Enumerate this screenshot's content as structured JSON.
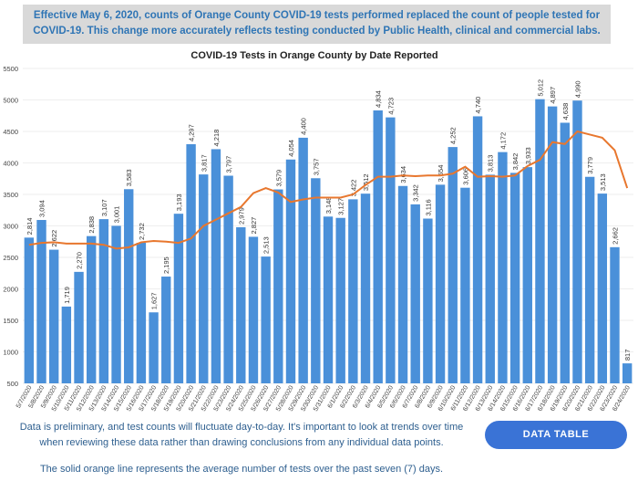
{
  "banner": "Effective May 6, 2020, counts of Orange County COVID-19 tests performed replaced the count of people tested for COVID-19. This change more accurately reflects testing conducted by Public Health, clinical and commercial labs.",
  "chart_data": {
    "type": "bar",
    "title": "COVID-19 Tests in Orange County by Date Reported",
    "categories": [
      "5/7/2020",
      "5/8/2020",
      "5/9/2020",
      "5/10/2020",
      "5/11/2020",
      "5/12/2020",
      "5/13/2020",
      "5/14/2020",
      "5/15/2020",
      "5/16/2020",
      "5/17/2020",
      "5/18/2020",
      "5/19/2020",
      "5/20/2020",
      "5/21/2020",
      "5/22/2020",
      "5/23/2020",
      "5/24/2020",
      "5/25/2020",
      "5/26/2020",
      "5/27/2020",
      "5/28/2020",
      "5/29/2020",
      "5/30/2020",
      "5/31/2020",
      "6/1/2020",
      "6/2/2020",
      "6/3/2020",
      "6/4/2020",
      "6/5/2020",
      "6/6/2020",
      "6/7/2020",
      "6/8/2020",
      "6/9/2020",
      "6/10/2020",
      "6/11/2020",
      "6/12/2020",
      "6/13/2020",
      "6/14/2020",
      "6/15/2020",
      "6/16/2020",
      "6/17/2020",
      "6/18/2020",
      "6/19/2020",
      "6/20/2020",
      "6/21/2020",
      "6/22/2020",
      "6/23/2020",
      "6/24/2020"
    ],
    "series": [
      {
        "type": "bar",
        "color": "#4a90d9",
        "values": [
          2814,
          3094,
          2622,
          1719,
          2270,
          2838,
          3107,
          3001,
          3583,
          2732,
          1627,
          2195,
          3193,
          4297,
          3817,
          4218,
          3797,
          2979,
          2827,
          2513,
          3579,
          4054,
          4400,
          3757,
          3148,
          3127,
          3422,
          3512,
          4834,
          4723,
          3634,
          3342,
          3116,
          3654,
          4252,
          3606,
          4740,
          3813,
          4172,
          3842,
          3933,
          5012,
          4897,
          4638,
          4990,
          3779,
          3513,
          2662,
          817
        ],
        "value_labels": [
          "2,814",
          "3,094",
          "2,622",
          "1,719",
          "2,270",
          "2,838",
          "3,107",
          "3,001",
          "3,583",
          "2,732",
          "1,627",
          "2,195",
          "3,193",
          "4,297",
          "3,817",
          "4,218",
          "3,797",
          "2,979",
          "2,827",
          "2,513",
          "3,579",
          "4,054",
          "4,400",
          "3,757",
          "3,148",
          "3,127",
          "3,422",
          "3,512",
          "4,834",
          "4,723",
          "3,634",
          "3,342",
          "3,116",
          "3,654",
          "4,252",
          "3,606",
          "4,740",
          "3,813",
          "4,172",
          "3,842",
          "3,933",
          "5,012",
          "4,897",
          "4,638",
          "4,990",
          "3,779",
          "3,513",
          "2,662",
          "817"
        ]
      },
      {
        "type": "line",
        "color": "#e8772e",
        "values": [
          2700,
          2730,
          2740,
          2720,
          2720,
          2720,
          2700,
          2640,
          2660,
          2740,
          2760,
          2750,
          2730,
          2800,
          3000,
          3100,
          3200,
          3300,
          3520,
          3600,
          3530,
          3380,
          3420,
          3450,
          3450,
          3450,
          3500,
          3650,
          3780,
          3780,
          3800,
          3790,
          3800,
          3800,
          3830,
          3940,
          3780,
          3790,
          3780,
          3800,
          3950,
          4050,
          4330,
          4300,
          4500,
          4450,
          4400,
          4200,
          3600
        ]
      }
    ],
    "ylim": [
      500,
      5500
    ],
    "yticks": [
      500,
      1000,
      1500,
      2000,
      2500,
      3000,
      3500,
      4000,
      4500,
      5000,
      5500
    ],
    "grid": true
  },
  "notes": [
    "Data is preliminary, and test counts will fluctuate day-to-day. It's important to look at trends over time when reviewing these data rather than drawing conclusions from any individual data points.",
    "The solid orange line represents the average number of tests over the past seven (7) days."
  ],
  "button": "DATA TABLE"
}
